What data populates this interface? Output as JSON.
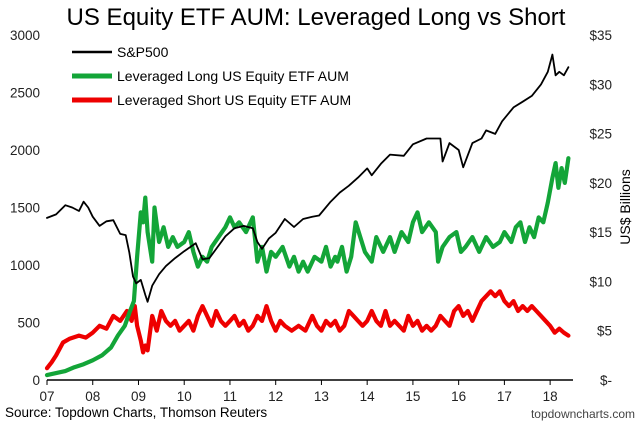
{
  "chart_data": {
    "type": "line",
    "title": "US Equity ETF AUM: Leveraged Long vs Short",
    "x_tick_labels": [
      "07",
      "08",
      "09",
      "10",
      "11",
      "12",
      "13",
      "14",
      "15",
      "16",
      "17",
      "18"
    ],
    "x_range": [
      2007.0,
      2018.5
    ],
    "y_left": {
      "range": [
        0,
        3000
      ],
      "ticks": [
        "0",
        "500",
        "1000",
        "1500",
        "2000",
        "2500",
        "3000"
      ],
      "tick_values": [
        0,
        500,
        1000,
        1500,
        2000,
        2500,
        3000
      ],
      "label": ""
    },
    "y_right": {
      "range": [
        0,
        35
      ],
      "ticks": [
        "$-",
        "$5",
        "$10",
        "$15",
        "$20",
        "$25",
        "$30",
        "$35"
      ],
      "tick_values": [
        0,
        5,
        10,
        15,
        20,
        25,
        30,
        35
      ],
      "label": "US$ Billions"
    },
    "legend": {
      "placement": "top-left"
    },
    "series": [
      {
        "name": "S&P500",
        "color": "#000000",
        "axis": "left",
        "points": [
          [
            2007.0,
            1410
          ],
          [
            2007.2,
            1440
          ],
          [
            2007.4,
            1520
          ],
          [
            2007.55,
            1500
          ],
          [
            2007.7,
            1470
          ],
          [
            2007.8,
            1550
          ],
          [
            2007.9,
            1500
          ],
          [
            2008.0,
            1420
          ],
          [
            2008.15,
            1340
          ],
          [
            2008.3,
            1380
          ],
          [
            2008.45,
            1390
          ],
          [
            2008.6,
            1270
          ],
          [
            2008.72,
            1260
          ],
          [
            2008.8,
            1110
          ],
          [
            2008.88,
            900
          ],
          [
            2008.95,
            840
          ],
          [
            2009.05,
            870
          ],
          [
            2009.15,
            740
          ],
          [
            2009.2,
            680
          ],
          [
            2009.3,
            820
          ],
          [
            2009.45,
            920
          ],
          [
            2009.6,
            990
          ],
          [
            2009.8,
            1060
          ],
          [
            2010.0,
            1120
          ],
          [
            2010.25,
            1190
          ],
          [
            2010.4,
            1050
          ],
          [
            2010.55,
            1060
          ],
          [
            2010.7,
            1140
          ],
          [
            2010.9,
            1250
          ],
          [
            2011.1,
            1320
          ],
          [
            2011.3,
            1340
          ],
          [
            2011.5,
            1320
          ],
          [
            2011.6,
            1200
          ],
          [
            2011.7,
            1140
          ],
          [
            2011.85,
            1230
          ],
          [
            2012.0,
            1280
          ],
          [
            2012.2,
            1400
          ],
          [
            2012.4,
            1330
          ],
          [
            2012.6,
            1400
          ],
          [
            2012.8,
            1420
          ],
          [
            2012.95,
            1430
          ],
          [
            2013.2,
            1550
          ],
          [
            2013.4,
            1630
          ],
          [
            2013.6,
            1690
          ],
          [
            2013.8,
            1760
          ],
          [
            2014.0,
            1840
          ],
          [
            2014.1,
            1780
          ],
          [
            2014.3,
            1880
          ],
          [
            2014.5,
            1960
          ],
          [
            2014.8,
            1950
          ],
          [
            2015.0,
            2050
          ],
          [
            2015.3,
            2100
          ],
          [
            2015.6,
            2100
          ],
          [
            2015.65,
            1900
          ],
          [
            2015.8,
            2060
          ],
          [
            2016.0,
            2000
          ],
          [
            2016.1,
            1850
          ],
          [
            2016.3,
            2060
          ],
          [
            2016.5,
            2100
          ],
          [
            2016.6,
            2170
          ],
          [
            2016.8,
            2140
          ],
          [
            2016.95,
            2250
          ],
          [
            2017.2,
            2370
          ],
          [
            2017.4,
            2420
          ],
          [
            2017.6,
            2470
          ],
          [
            2017.8,
            2570
          ],
          [
            2017.95,
            2680
          ],
          [
            2018.05,
            2830
          ],
          [
            2018.12,
            2650
          ],
          [
            2018.2,
            2680
          ],
          [
            2018.3,
            2650
          ],
          [
            2018.4,
            2720
          ]
        ]
      },
      {
        "name": "Leveraged Long US Equity ETF AUM",
        "color": "#13a538",
        "axis": "right",
        "points": [
          [
            2007.0,
            0.5
          ],
          [
            2007.2,
            0.7
          ],
          [
            2007.4,
            0.9
          ],
          [
            2007.6,
            1.3
          ],
          [
            2007.8,
            1.6
          ],
          [
            2008.0,
            2.0
          ],
          [
            2008.2,
            2.5
          ],
          [
            2008.4,
            3.3
          ],
          [
            2008.55,
            4.5
          ],
          [
            2008.7,
            5.5
          ],
          [
            2008.8,
            6.8
          ],
          [
            2008.9,
            8.0
          ],
          [
            2008.97,
            12.5
          ],
          [
            2009.05,
            17.0
          ],
          [
            2009.1,
            16.0
          ],
          [
            2009.15,
            18.5
          ],
          [
            2009.2,
            15.0
          ],
          [
            2009.3,
            12.0
          ],
          [
            2009.35,
            17.5
          ],
          [
            2009.45,
            14.0
          ],
          [
            2009.55,
            15.5
          ],
          [
            2009.65,
            13.5
          ],
          [
            2009.75,
            14.5
          ],
          [
            2009.85,
            13.5
          ],
          [
            2010.0,
            14.0
          ],
          [
            2010.1,
            15.0
          ],
          [
            2010.2,
            13.0
          ],
          [
            2010.3,
            11.5
          ],
          [
            2010.4,
            12.5
          ],
          [
            2010.5,
            12.0
          ],
          [
            2010.6,
            13.5
          ],
          [
            2010.75,
            14.5
          ],
          [
            2010.9,
            15.5
          ],
          [
            2011.0,
            16.5
          ],
          [
            2011.1,
            15.5
          ],
          [
            2011.2,
            16.0
          ],
          [
            2011.35,
            15.0
          ],
          [
            2011.5,
            16.5
          ],
          [
            2011.6,
            12.0
          ],
          [
            2011.7,
            13.5
          ],
          [
            2011.8,
            11.0
          ],
          [
            2011.9,
            13.0
          ],
          [
            2012.0,
            12.5
          ],
          [
            2012.15,
            13.5
          ],
          [
            2012.3,
            11.5
          ],
          [
            2012.4,
            12.5
          ],
          [
            2012.5,
            11.0
          ],
          [
            2012.6,
            12.0
          ],
          [
            2012.7,
            11.0
          ],
          [
            2012.85,
            12.5
          ],
          [
            2013.0,
            12.0
          ],
          [
            2013.1,
            13.5
          ],
          [
            2013.2,
            11.5
          ],
          [
            2013.3,
            12.5
          ],
          [
            2013.35,
            12.0
          ],
          [
            2013.45,
            13.5
          ],
          [
            2013.55,
            11.0
          ],
          [
            2013.65,
            12.5
          ],
          [
            2013.75,
            16.0
          ],
          [
            2013.85,
            14.5
          ],
          [
            2013.95,
            13.0
          ],
          [
            2014.1,
            12.0
          ],
          [
            2014.2,
            14.5
          ],
          [
            2014.35,
            13.0
          ],
          [
            2014.5,
            14.5
          ],
          [
            2014.6,
            13.0
          ],
          [
            2014.75,
            15.0
          ],
          [
            2014.9,
            14.0
          ],
          [
            2015.0,
            16.0
          ],
          [
            2015.1,
            17.0
          ],
          [
            2015.2,
            15.0
          ],
          [
            2015.35,
            16.0
          ],
          [
            2015.5,
            15.0
          ],
          [
            2015.55,
            12.0
          ],
          [
            2015.65,
            13.5
          ],
          [
            2015.8,
            14.5
          ],
          [
            2015.95,
            15.0
          ],
          [
            2016.05,
            13.0
          ],
          [
            2016.15,
            13.5
          ],
          [
            2016.3,
            14.5
          ],
          [
            2016.45,
            13.0
          ],
          [
            2016.6,
            14.5
          ],
          [
            2016.75,
            13.5
          ],
          [
            2016.9,
            14.0
          ],
          [
            2017.0,
            15.0
          ],
          [
            2017.15,
            14.0
          ],
          [
            2017.25,
            15.5
          ],
          [
            2017.35,
            16.0
          ],
          [
            2017.45,
            14.0
          ],
          [
            2017.55,
            15.5
          ],
          [
            2017.65,
            14.5
          ],
          [
            2017.75,
            16.5
          ],
          [
            2017.85,
            16.0
          ],
          [
            2017.95,
            18.0
          ],
          [
            2018.05,
            20.5
          ],
          [
            2018.12,
            22.0
          ],
          [
            2018.18,
            19.5
          ],
          [
            2018.25,
            21.5
          ],
          [
            2018.32,
            20.0
          ],
          [
            2018.4,
            22.5
          ]
        ]
      },
      {
        "name": "Leveraged Short US Equity ETF AUM",
        "color": "#ee0000",
        "axis": "right",
        "points": [
          [
            2007.0,
            1.2
          ],
          [
            2007.1,
            1.8
          ],
          [
            2007.2,
            2.5
          ],
          [
            2007.35,
            3.8
          ],
          [
            2007.5,
            4.2
          ],
          [
            2007.7,
            4.5
          ],
          [
            2007.85,
            4.3
          ],
          [
            2008.0,
            4.8
          ],
          [
            2008.15,
            5.5
          ],
          [
            2008.3,
            5.2
          ],
          [
            2008.45,
            6.5
          ],
          [
            2008.6,
            6.0
          ],
          [
            2008.75,
            7.0
          ],
          [
            2008.85,
            6.0
          ],
          [
            2008.92,
            7.5
          ],
          [
            2008.97,
            5.5
          ],
          [
            2009.05,
            4.0
          ],
          [
            2009.1,
            2.8
          ],
          [
            2009.15,
            3.5
          ],
          [
            2009.2,
            3.0
          ],
          [
            2009.3,
            6.5
          ],
          [
            2009.4,
            5.0
          ],
          [
            2009.5,
            7.0
          ],
          [
            2009.6,
            6.0
          ],
          [
            2009.7,
            5.5
          ],
          [
            2009.8,
            6.0
          ],
          [
            2009.9,
            5.0
          ],
          [
            2010.0,
            5.5
          ],
          [
            2010.1,
            6.0
          ],
          [
            2010.2,
            5.0
          ],
          [
            2010.3,
            6.5
          ],
          [
            2010.4,
            7.5
          ],
          [
            2010.5,
            6.5
          ],
          [
            2010.6,
            5.5
          ],
          [
            2010.7,
            7.0
          ],
          [
            2010.8,
            6.0
          ],
          [
            2010.9,
            5.5
          ],
          [
            2011.0,
            6.0
          ],
          [
            2011.1,
            6.5
          ],
          [
            2011.2,
            5.5
          ],
          [
            2011.3,
            6.0
          ],
          [
            2011.4,
            5.0
          ],
          [
            2011.5,
            5.5
          ],
          [
            2011.6,
            6.5
          ],
          [
            2011.7,
            6.0
          ],
          [
            2011.8,
            7.5
          ],
          [
            2011.9,
            6.0
          ],
          [
            2012.0,
            5.0
          ],
          [
            2012.1,
            6.0
          ],
          [
            2012.2,
            5.5
          ],
          [
            2012.35,
            5.0
          ],
          [
            2012.5,
            5.5
          ],
          [
            2012.65,
            5.0
          ],
          [
            2012.8,
            6.5
          ],
          [
            2012.9,
            5.5
          ],
          [
            2013.0,
            5.0
          ],
          [
            2013.1,
            6.0
          ],
          [
            2013.2,
            5.5
          ],
          [
            2013.3,
            6.0
          ],
          [
            2013.4,
            5.0
          ],
          [
            2013.5,
            5.5
          ],
          [
            2013.6,
            7.0
          ],
          [
            2013.7,
            6.5
          ],
          [
            2013.8,
            6.0
          ],
          [
            2013.9,
            5.5
          ],
          [
            2014.0,
            6.0
          ],
          [
            2014.1,
            7.0
          ],
          [
            2014.2,
            6.0
          ],
          [
            2014.3,
            5.5
          ],
          [
            2014.4,
            7.0
          ],
          [
            2014.5,
            5.5
          ],
          [
            2014.6,
            6.0
          ],
          [
            2014.7,
            5.5
          ],
          [
            2014.8,
            5.0
          ],
          [
            2014.9,
            6.5
          ],
          [
            2015.0,
            5.5
          ],
          [
            2015.1,
            6.0
          ],
          [
            2015.2,
            5.0
          ],
          [
            2015.3,
            5.5
          ],
          [
            2015.4,
            5.0
          ],
          [
            2015.5,
            5.5
          ],
          [
            2015.6,
            6.5
          ],
          [
            2015.7,
            6.0
          ],
          [
            2015.8,
            5.5
          ],
          [
            2015.9,
            7.0
          ],
          [
            2016.0,
            7.5
          ],
          [
            2016.1,
            6.5
          ],
          [
            2016.2,
            7.0
          ],
          [
            2016.3,
            6.0
          ],
          [
            2016.4,
            7.0
          ],
          [
            2016.5,
            8.0
          ],
          [
            2016.6,
            8.5
          ],
          [
            2016.7,
            9.0
          ],
          [
            2016.8,
            8.5
          ],
          [
            2016.9,
            9.0
          ],
          [
            2017.0,
            8.0
          ],
          [
            2017.1,
            7.5
          ],
          [
            2017.2,
            8.0
          ],
          [
            2017.3,
            7.0
          ],
          [
            2017.4,
            7.5
          ],
          [
            2017.5,
            7.0
          ],
          [
            2017.6,
            7.5
          ],
          [
            2017.7,
            7.0
          ],
          [
            2017.8,
            6.5
          ],
          [
            2017.9,
            6.0
          ],
          [
            2018.0,
            5.5
          ],
          [
            2018.1,
            4.8
          ],
          [
            2018.2,
            5.2
          ],
          [
            2018.3,
            4.8
          ],
          [
            2018.4,
            4.5
          ]
        ]
      }
    ]
  },
  "footer": {
    "source": "Source: Topdown Charts, Thomson Reuters",
    "watermark": "topdowncharts.com"
  }
}
